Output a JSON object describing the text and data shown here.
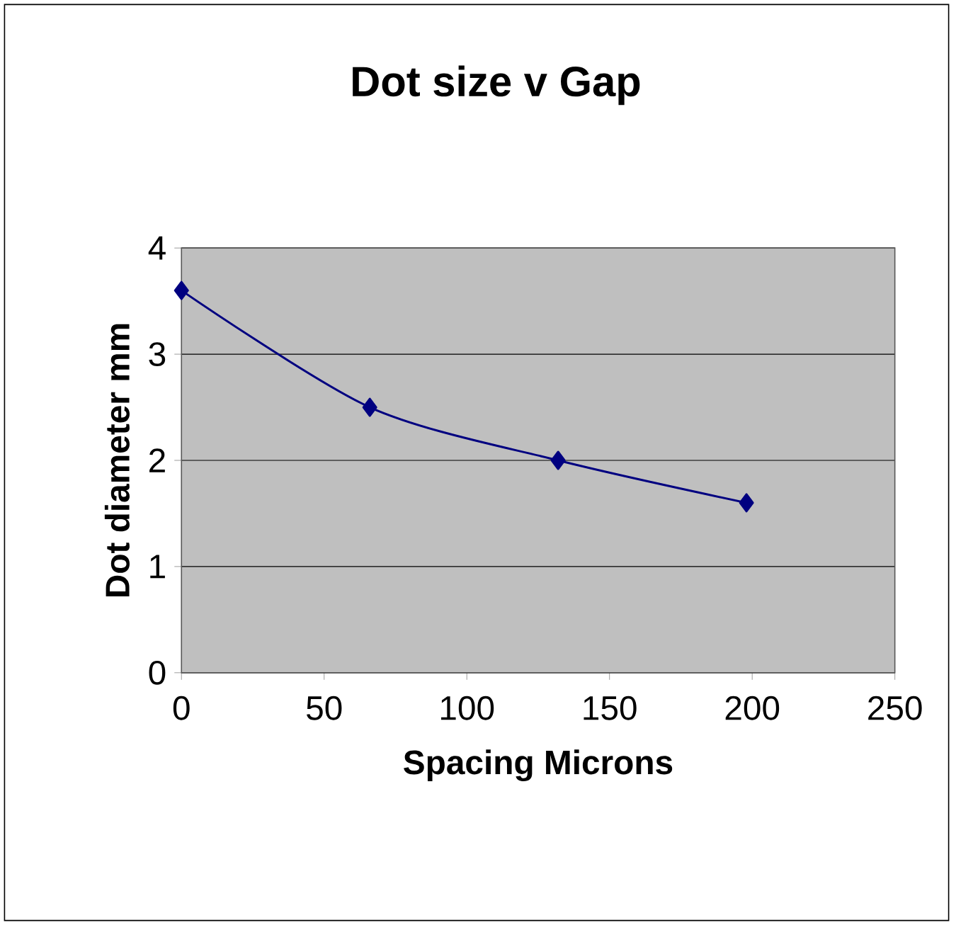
{
  "chart_data": {
    "type": "line",
    "title": "Dot size v Gap",
    "xlabel": "Spacing Microns",
    "ylabel": "Dot diameter mm",
    "x": [
      0,
      66,
      132,
      198
    ],
    "series": [
      {
        "color": "#000080",
        "values": [
          3.6,
          2.5,
          2.0,
          1.6
        ]
      }
    ],
    "xlim": [
      0,
      250
    ],
    "xticks": [
      0,
      50,
      100,
      150,
      200,
      250
    ],
    "ylim": [
      0,
      4
    ],
    "yticks": [
      0,
      1,
      2,
      3,
      4
    ],
    "grid": "y",
    "marker": "diamond",
    "line_style": "solid"
  }
}
